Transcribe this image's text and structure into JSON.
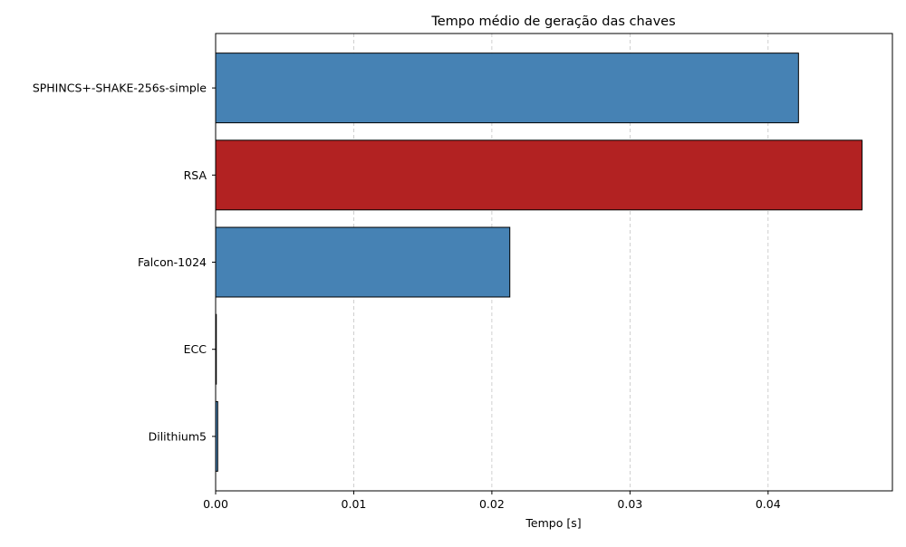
{
  "chart_data": {
    "type": "bar",
    "orientation": "horizontal",
    "title": "Tempo médio de geração das chaves",
    "xlabel": "Tempo [s]",
    "ylabel": "",
    "xlim": [
      0,
      0.049
    ],
    "grid": "x-dashed",
    "legend": "none",
    "x_ticks": [
      {
        "value": 0.0,
        "label": "0.00"
      },
      {
        "value": 0.01,
        "label": "0.01"
      },
      {
        "value": 0.02,
        "label": "0.02"
      },
      {
        "value": 0.03,
        "label": "0.03"
      },
      {
        "value": 0.04,
        "label": "0.04"
      }
    ],
    "categories": [
      "SPHINCS+-SHAKE-256s-simple",
      "RSA",
      "Falcon-1024",
      "ECC",
      "Dilithium5"
    ],
    "values": [
      0.0422,
      0.0468,
      0.0213,
      5e-05,
      0.00015
    ],
    "bar_colors": [
      "#4682b4",
      "#b22222",
      "#4682b4",
      "#4682b4",
      "#4682b4"
    ]
  }
}
